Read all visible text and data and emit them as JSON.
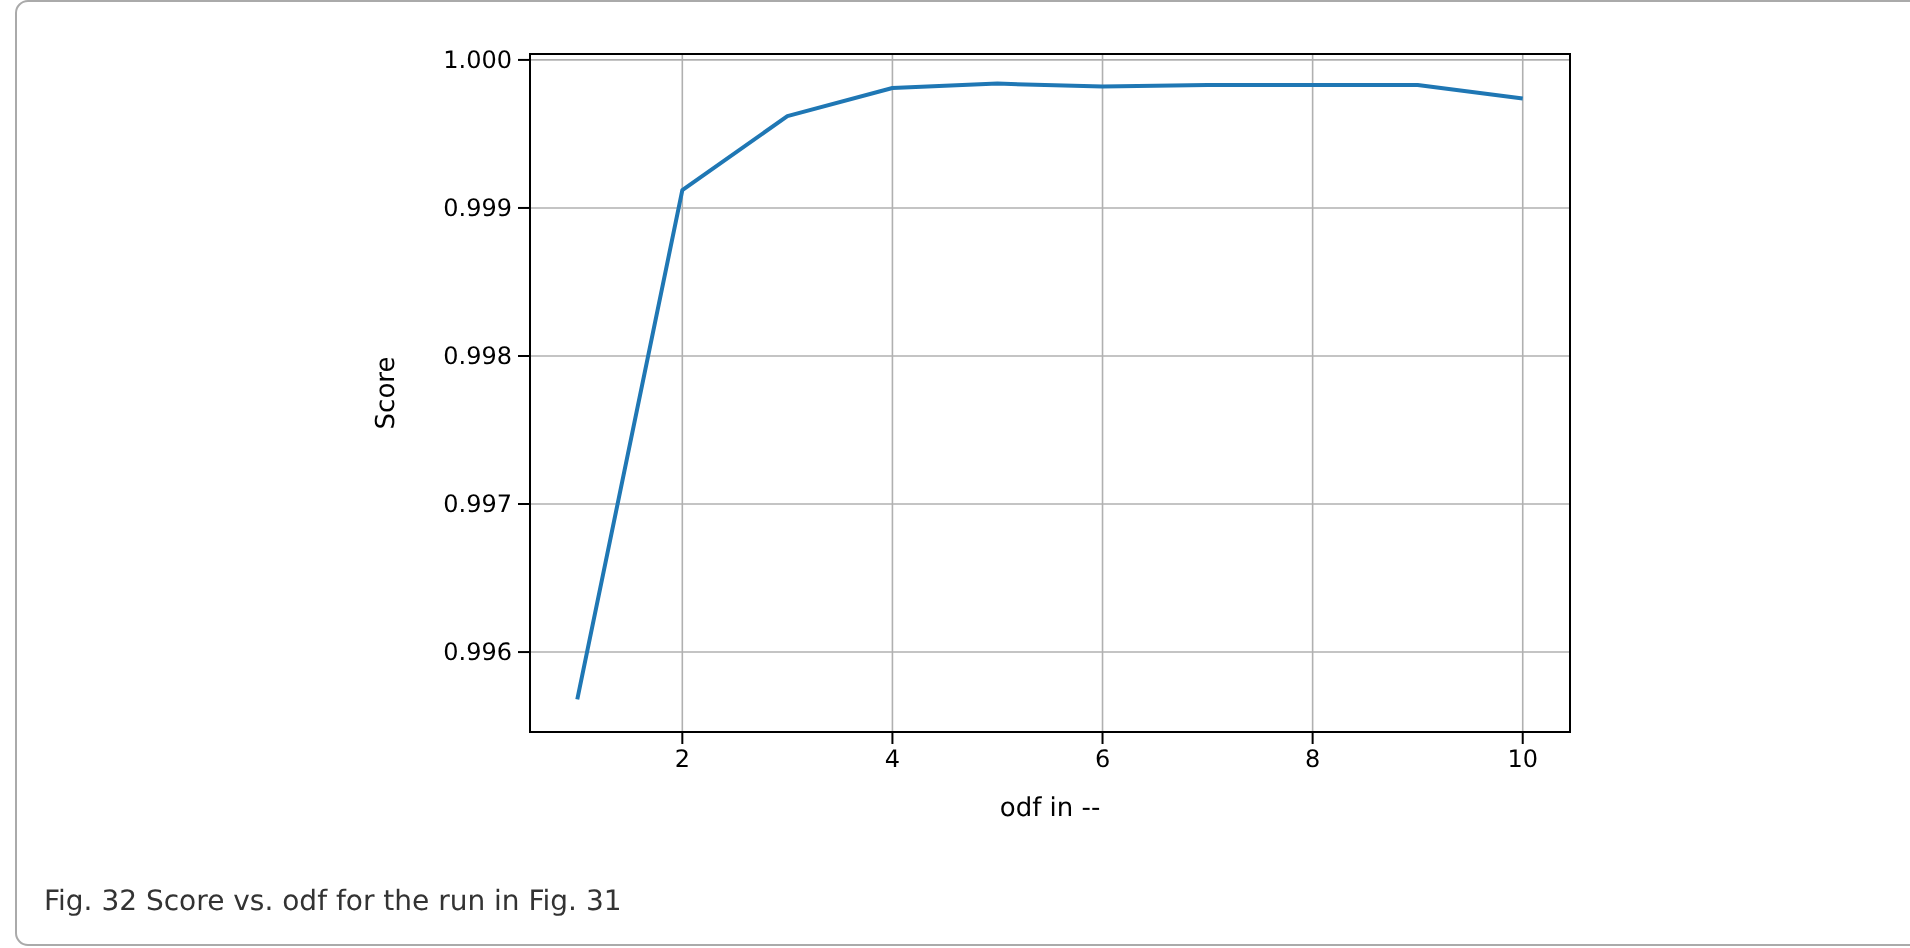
{
  "chart_data": {
    "type": "line",
    "xlabel": "odf in --",
    "ylabel": "Score",
    "x": [
      1,
      2,
      3,
      4,
      5,
      6,
      7,
      8,
      9,
      10
    ],
    "series": [
      {
        "color": "#1f77b4",
        "values": [
          0.99568,
          0.99912,
          0.99962,
          0.99981,
          0.99984,
          0.99982,
          0.99983,
          0.99983,
          0.99983,
          0.99974
        ]
      }
    ],
    "xlim": [
      0.55,
      10.45
    ],
    "ylim": [
      0.99546,
      1.00004
    ],
    "xticks": [
      2,
      4,
      6,
      8,
      10
    ],
    "yticks": [
      {
        "value": 0.996,
        "label": "0.996"
      },
      {
        "value": 0.997,
        "label": "0.997"
      },
      {
        "value": 0.998,
        "label": "0.998"
      },
      {
        "value": 0.999,
        "label": "0.999"
      },
      {
        "value": 1.0,
        "label": "1.000"
      }
    ],
    "grid": true,
    "marker": "none",
    "line_style": "solid",
    "annotations": [
      "Fig. 32  Score vs. odf for the run in Fig. 31"
    ]
  }
}
